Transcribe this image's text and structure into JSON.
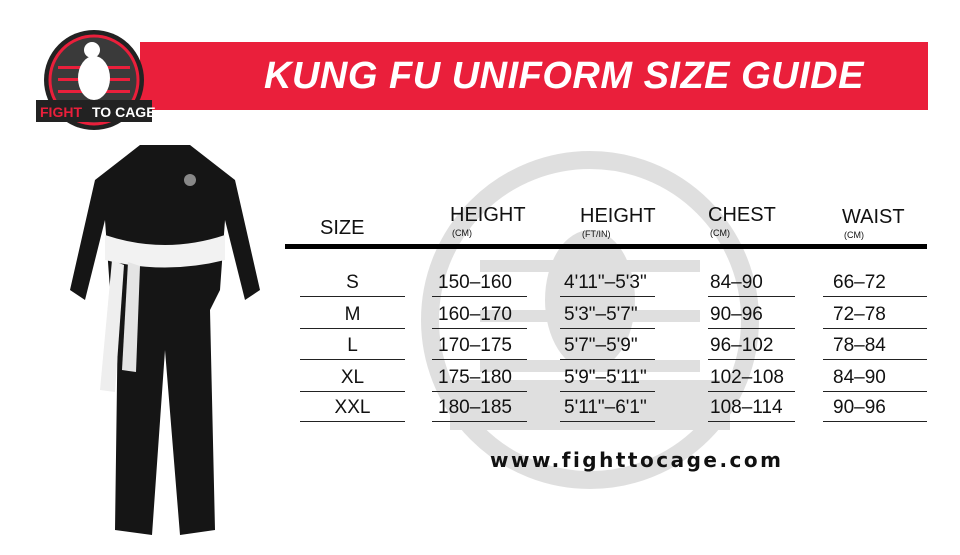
{
  "title": "KUNG FU UNIFORM SIZE GUIDE",
  "logo": {
    "text": "FIGHT TO CAGE"
  },
  "colors": {
    "banner": "#ea1f3b"
  },
  "table": {
    "headers": [
      {
        "label": "SIZE",
        "unit": ""
      },
      {
        "label": "HEIGHT",
        "unit": "(CM)"
      },
      {
        "label": "HEIGHT",
        "unit": "(FT/IN)"
      },
      {
        "label": "CHEST",
        "unit": "(CM)"
      },
      {
        "label": "WAIST",
        "unit": "(CM)"
      }
    ],
    "rows": [
      [
        "S",
        "150–160",
        "4'11\"–5'3\"",
        "84–90",
        "66–72"
      ],
      [
        "M",
        "160–170",
        "5'3\"–5'7\"",
        "90–96",
        "72–78"
      ],
      [
        "L",
        "170–175",
        "5'7\"–5'9\"",
        "96–102",
        "78–84"
      ],
      [
        "XL",
        "175–180",
        "5'9\"–5'11\"",
        "102–108",
        "84–90"
      ],
      [
        "XXL",
        "180–185",
        "5'11\"–6'1\"",
        "108–114",
        "90–96"
      ]
    ]
  },
  "url": "www.fighttocage.com"
}
